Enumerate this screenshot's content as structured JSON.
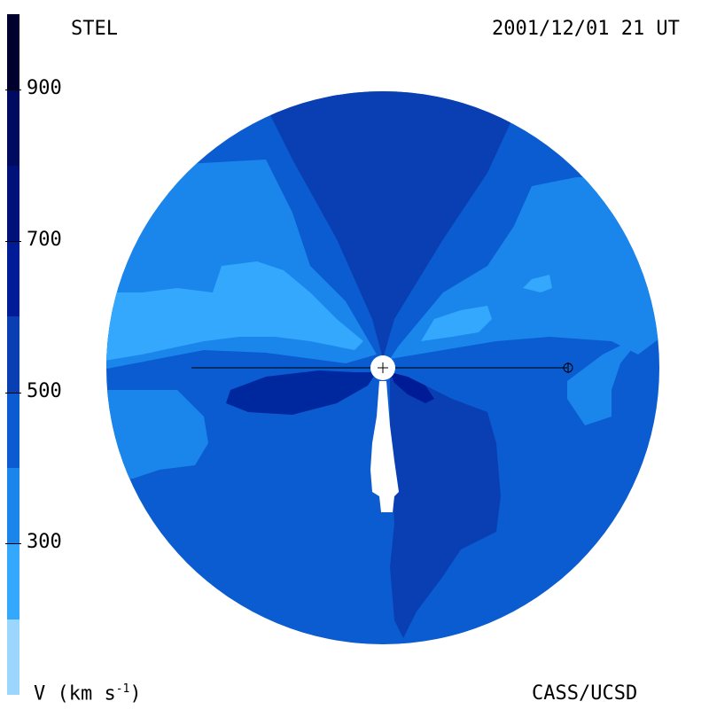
{
  "header": {
    "observatory": "STEL",
    "timestamp": "2001/12/01 21 UT"
  },
  "footer": {
    "unit_label_prefix": "V (km s",
    "unit_label_exp": "-1",
    "unit_label_suffix": ")",
    "credit": "CASS/UCSD"
  },
  "colorbar": {
    "segments": [
      {
        "from": 1000,
        "to": 900,
        "color": "#00002e"
      },
      {
        "from": 900,
        "to": 800,
        "color": "#000a5e"
      },
      {
        "from": 800,
        "to": 700,
        "color": "#00127a"
      },
      {
        "from": 700,
        "to": 600,
        "color": "#001b96"
      },
      {
        "from": 600,
        "to": 500,
        "color": "#0a3fb4"
      },
      {
        "from": 500,
        "to": 400,
        "color": "#0a5cd0"
      },
      {
        "from": 400,
        "to": 300,
        "color": "#1a86ec"
      },
      {
        "from": 300,
        "to": 200,
        "color": "#34a8fc"
      },
      {
        "from": 200,
        "to": 100,
        "color": "#9dd6fc"
      }
    ],
    "ticks": [
      "900",
      "700",
      "500",
      "300"
    ],
    "tick_values": [
      900,
      700,
      500,
      300
    ],
    "range": [
      100,
      1000
    ]
  },
  "colors": {
    "c380": "#0a5cd0",
    "c300": "#1a86ec",
    "c250": "#34a8fc",
    "c460": "#0a3fb4",
    "c560": "#00289e",
    "c620": "#001b96",
    "sun": "#ffffff",
    "earth_line": "#000000"
  },
  "icons": {
    "sun": "sun-disk-icon",
    "earth": "earth-symbol-icon"
  }
}
